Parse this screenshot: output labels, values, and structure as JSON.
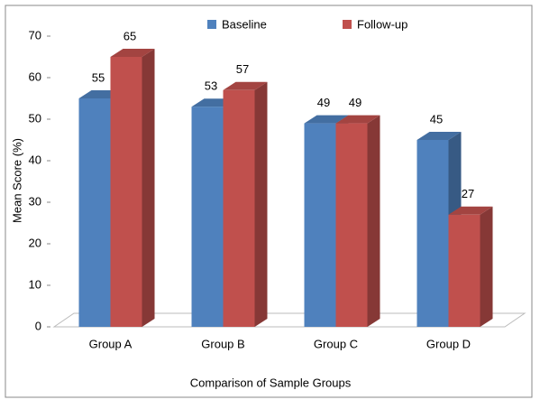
{
  "chart_data": {
    "type": "bar3d",
    "x_label": "Comparison of Sample Groups",
    "y_label": "Mean Score (%)",
    "categories": [
      "Group A",
      "Group B",
      "Group C",
      "Group D"
    ],
    "series": [
      {
        "name": "Baseline",
        "color": "#4f81bd",
        "values": [
          55,
          53,
          49,
          45
        ]
      },
      {
        "name": "Follow-up",
        "color": "#c0504d",
        "values": [
          65,
          57,
          49,
          27
        ]
      }
    ],
    "ylim": [
      0,
      70
    ],
    "yticks": [
      0,
      10,
      20,
      30,
      40,
      50,
      60,
      70
    ],
    "legend": "top"
  }
}
